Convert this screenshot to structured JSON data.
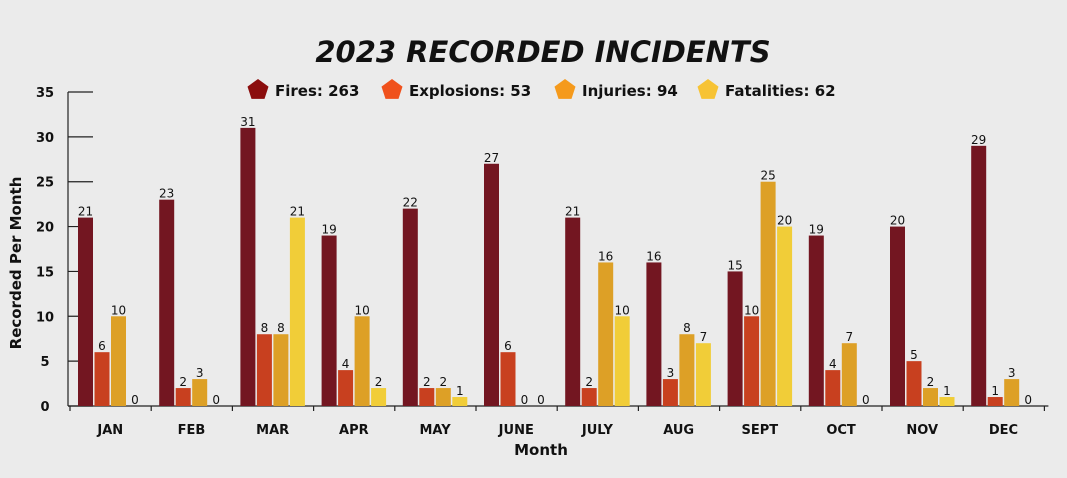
{
  "chart_data": {
    "type": "bar",
    "title": "2023 RECORDED INCIDENTS",
    "xlabel": "Month",
    "ylabel": "Recorded Per Month",
    "ylim": [
      0,
      35
    ],
    "yticks": [
      0,
      5,
      10,
      15,
      20,
      25,
      30,
      35
    ],
    "grid": false,
    "legend_position": "top-center",
    "categories": [
      "JAN",
      "FEB",
      "MAR",
      "APR",
      "MAY",
      "JUNE",
      "JULY",
      "AUG",
      "SEPT",
      "OCT",
      "NOV",
      "DEC"
    ],
    "series": [
      {
        "name": "Fires",
        "legend_label": "Fires: 263",
        "color": "#731621",
        "legend_color": "#8b0d0d",
        "values": [
          21,
          23,
          31,
          19,
          22,
          27,
          21,
          16,
          15,
          19,
          20,
          29
        ]
      },
      {
        "name": "Explosions",
        "legend_label": "Explosions: 53",
        "color": "#c8401f",
        "legend_color": "#f0511c",
        "values": [
          6,
          2,
          8,
          4,
          2,
          6,
          2,
          3,
          10,
          4,
          5,
          1
        ]
      },
      {
        "name": "Injuries",
        "legend_label": "Injuries: 94",
        "color": "#dda026",
        "legend_color": "#f59a1c",
        "values": [
          10,
          3,
          8,
          10,
          2,
          0,
          16,
          8,
          25,
          7,
          2,
          3
        ]
      },
      {
        "name": "Fatalities",
        "legend_label": "Fatalities: 62",
        "color": "#f1cd38",
        "legend_color": "#f7c334",
        "values": [
          0,
          0,
          21,
          2,
          1,
          0,
          10,
          7,
          20,
          0,
          1,
          0
        ]
      }
    ]
  }
}
